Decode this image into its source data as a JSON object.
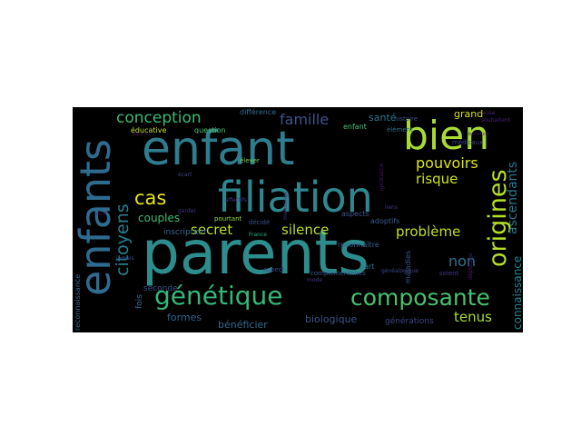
{
  "wordcloud": {
    "background": "#000000",
    "words": [
      {
        "id": "enfant",
        "text": "enfant",
        "color": "#2e7c8e"
      },
      {
        "id": "parents",
        "text": "parents",
        "color": "#2d8c8c"
      },
      {
        "id": "filiation",
        "text": "filiation",
        "color": "#30868e"
      },
      {
        "id": "enfants",
        "text": "enfants",
        "color": "#2f6b8e"
      },
      {
        "id": "bien",
        "text": "bien",
        "color": "#a8db34"
      },
      {
        "id": "genetique",
        "text": "génétique",
        "color": "#35b779"
      },
      {
        "id": "composante",
        "text": "composante",
        "color": "#48c16e"
      },
      {
        "id": "origines",
        "text": "origines",
        "color": "#b5de2b"
      },
      {
        "id": "conception",
        "text": "conception",
        "color": "#3bbb75"
      },
      {
        "id": "cas",
        "text": "cas",
        "color": "#e5e419"
      },
      {
        "id": "citoyens",
        "text": "citoyens",
        "color": "#287d8e"
      },
      {
        "id": "famille",
        "text": "famille",
        "color": "#3b528b"
      },
      {
        "id": "pouvoirs",
        "text": "pouvoirs",
        "color": "#dde318"
      },
      {
        "id": "risque",
        "text": "risque",
        "color": "#d0e11c"
      },
      {
        "id": "secret",
        "text": "secret",
        "color": "#bddf26"
      },
      {
        "id": "silence",
        "text": "silence",
        "color": "#b8de29"
      },
      {
        "id": "probleme",
        "text": "problème",
        "color": "#c2df23"
      },
      {
        "id": "non",
        "text": "non",
        "color": "#2c728e"
      },
      {
        "id": "ascendants",
        "text": "ascendants",
        "color": "#2a788e"
      },
      {
        "id": "tenus",
        "text": "tenus",
        "color": "#a5db36"
      },
      {
        "id": "couples",
        "text": "couples",
        "color": "#3dbc74"
      },
      {
        "id": "entendu",
        "text": "entendu",
        "color": "#2c728e"
      },
      {
        "id": "connaissance",
        "text": "connaissance",
        "color": "#25858e"
      },
      {
        "id": "grand",
        "text": "grand",
        "color": "#d8e219"
      },
      {
        "id": "sante",
        "text": "santé",
        "color": "#2a788e"
      },
      {
        "id": "formes",
        "text": "formes",
        "color": "#32658e"
      },
      {
        "id": "beneficier",
        "text": "bénéficier",
        "color": "#31688e"
      },
      {
        "id": "biologique",
        "text": "biologique",
        "color": "#3b528b"
      },
      {
        "id": "generations",
        "text": "générations",
        "color": "#404688"
      },
      {
        "id": "seconde",
        "text": "seconde",
        "color": "#3a538b"
      },
      {
        "id": "inscription",
        "text": "inscription",
        "color": "#31688e"
      },
      {
        "id": "fois",
        "text": "fois",
        "color": "#2e6f8e"
      },
      {
        "id": "reconnaissance",
        "text": "reconnaissance",
        "color": "#2f6c8e"
      },
      {
        "id": "educative",
        "text": "éducative",
        "color": "#c0df25"
      },
      {
        "id": "question",
        "text": "question",
        "color": "#4ec36b"
      },
      {
        "id": "difference",
        "text": "différence",
        "color": "#2e6e8e"
      },
      {
        "id": "aspects",
        "text": "aspects",
        "color": "#38598c"
      },
      {
        "id": "aspect",
        "text": "aspect",
        "color": "#3e4a89"
      },
      {
        "id": "pourtant",
        "text": "pourtant",
        "color": "#95d840"
      },
      {
        "id": "decide",
        "text": "décidé",
        "color": "#3d4e8a"
      },
      {
        "id": "adoptifs",
        "text": "adoptifs",
        "color": "#375b8d"
      },
      {
        "id": "reconnaitre",
        "text": "reconnaître",
        "color": "#355f8d"
      },
      {
        "id": "maladies",
        "text": "maladies",
        "color": "#39568c"
      },
      {
        "id": "part",
        "text": "part",
        "color": "#2b758e"
      },
      {
        "id": "soient",
        "text": "soient",
        "color": "#453781"
      },
      {
        "id": "enfant_small",
        "text": "enfant",
        "color": "#4ac16d"
      },
      {
        "id": "medicaux",
        "text": "médicaux",
        "color": "#3e4989"
      },
      {
        "id": "elever",
        "text": "élever",
        "color": "#7ad151"
      },
      {
        "id": "complementaires",
        "text": "complémentaires",
        "color": "#38598c"
      },
      {
        "id": "genealogique",
        "text": "généalogique",
        "color": "#3f4889"
      },
      {
        "id": "histoire",
        "text": "histoire",
        "color": "#3c4f8a"
      },
      {
        "id": "element",
        "text": "élément",
        "color": "#2d718e"
      },
      {
        "id": "ecart",
        "text": "écart",
        "color": "#424086"
      },
      {
        "id": "liens",
        "text": "liens",
        "color": "#463480"
      },
      {
        "id": "affectifs",
        "text": "affectifs",
        "color": "#453781"
      },
      {
        "id": "mensonge",
        "text": "mensonge",
        "color": "#472c7a"
      },
      {
        "id": "garder",
        "text": "garder",
        "color": "#46337f"
      },
      {
        "id": "jamais",
        "text": "jamais",
        "color": "#3e4c8a"
      },
      {
        "id": "mode",
        "text": "mode",
        "color": "#443983"
      },
      {
        "id": "france",
        "text": "France",
        "color": "#27ad81"
      },
      {
        "id": "cause",
        "text": "cause",
        "color": "#482475"
      },
      {
        "id": "souhaitent",
        "text": "souhaitent",
        "color": "#482374"
      },
      {
        "id": "depistage",
        "text": "dépistage",
        "color": "#481d6f"
      },
      {
        "id": "ignorance",
        "text": "ignorance",
        "color": "#481a6c"
      },
      {
        "id": "beneficie",
        "text": "bénéficie",
        "color": "#48186a"
      },
      {
        "id": "parent",
        "text": "parent",
        "color": "#471365"
      },
      {
        "id": "dont",
        "text": "dont",
        "color": "#470e61"
      }
    ]
  }
}
